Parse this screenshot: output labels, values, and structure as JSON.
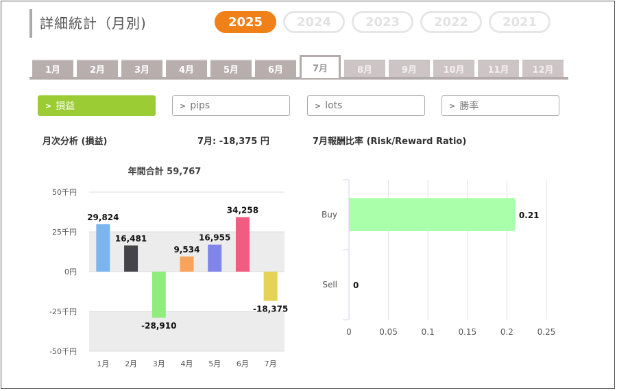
{
  "page": {
    "title": "詳細統計（月別)",
    "years": [
      "2025",
      "2024",
      "2023",
      "2022",
      "2021"
    ],
    "active_year_index": 0,
    "months": [
      "1月",
      "2月",
      "3月",
      "4月",
      "5月",
      "6月",
      "7月",
      "8月",
      "9月",
      "10月",
      "11月",
      "12月"
    ],
    "active_month_index": 6,
    "metrics": [
      {
        "label": "損益",
        "icon": "chevron-right-icon"
      },
      {
        "label": "pips",
        "icon": "chevron-right-icon"
      },
      {
        "label": "lots",
        "icon": "chevron-right-icon"
      },
      {
        "label": "勝率",
        "icon": "chevron-right-icon"
      }
    ],
    "active_metric_index": 0,
    "colors": {
      "accent_year": "#f08018",
      "accent_metric": "#9bcc33"
    }
  },
  "left_panel": {
    "heading": "月次分析 (損益)",
    "current_summary": "7月:  -18,375 円"
  },
  "right_panel": {
    "heading": "7月報酬比率 (Risk/Reward Ratio)"
  },
  "chart_data": [
    {
      "type": "bar",
      "title": "年間合計 59,767",
      "categories": [
        "1月",
        "2月",
        "3月",
        "4月",
        "5月",
        "6月",
        "7月"
      ],
      "values": [
        29824,
        16481,
        -28910,
        9534,
        16955,
        34258,
        -18375
      ],
      "value_labels": [
        "29,824",
        "16,481",
        "-28,910",
        "9,534",
        "16,955",
        "34,258",
        "-18,375"
      ],
      "colors": [
        "#7cb5ec",
        "#434348",
        "#90ed7d",
        "#f7a35c",
        "#8085e9",
        "#f15c80",
        "#e4d354"
      ],
      "ylim": [
        -50000,
        50000
      ],
      "yticks": [
        50000,
        25000,
        0,
        -25000,
        -50000
      ],
      "ytick_labels": [
        "50千円",
        "25千円",
        "0円",
        "-25千円",
        "-50千円"
      ],
      "banded_grid": true
    },
    {
      "type": "bar",
      "orientation": "horizontal",
      "categories": [
        "Buy",
        "Sell"
      ],
      "values": [
        0.21,
        0
      ],
      "value_labels": [
        "0.21",
        "0"
      ],
      "colors": [
        "#aaffaa",
        "#aaffaa"
      ],
      "xlim": [
        0,
        0.25
      ],
      "xticks": [
        0,
        0.05,
        0.1,
        0.15,
        0.2,
        0.25
      ],
      "xtick_labels": [
        "0",
        "0.05",
        "0.1",
        "0.15",
        "0.2",
        "0.25"
      ],
      "grid": true
    }
  ]
}
